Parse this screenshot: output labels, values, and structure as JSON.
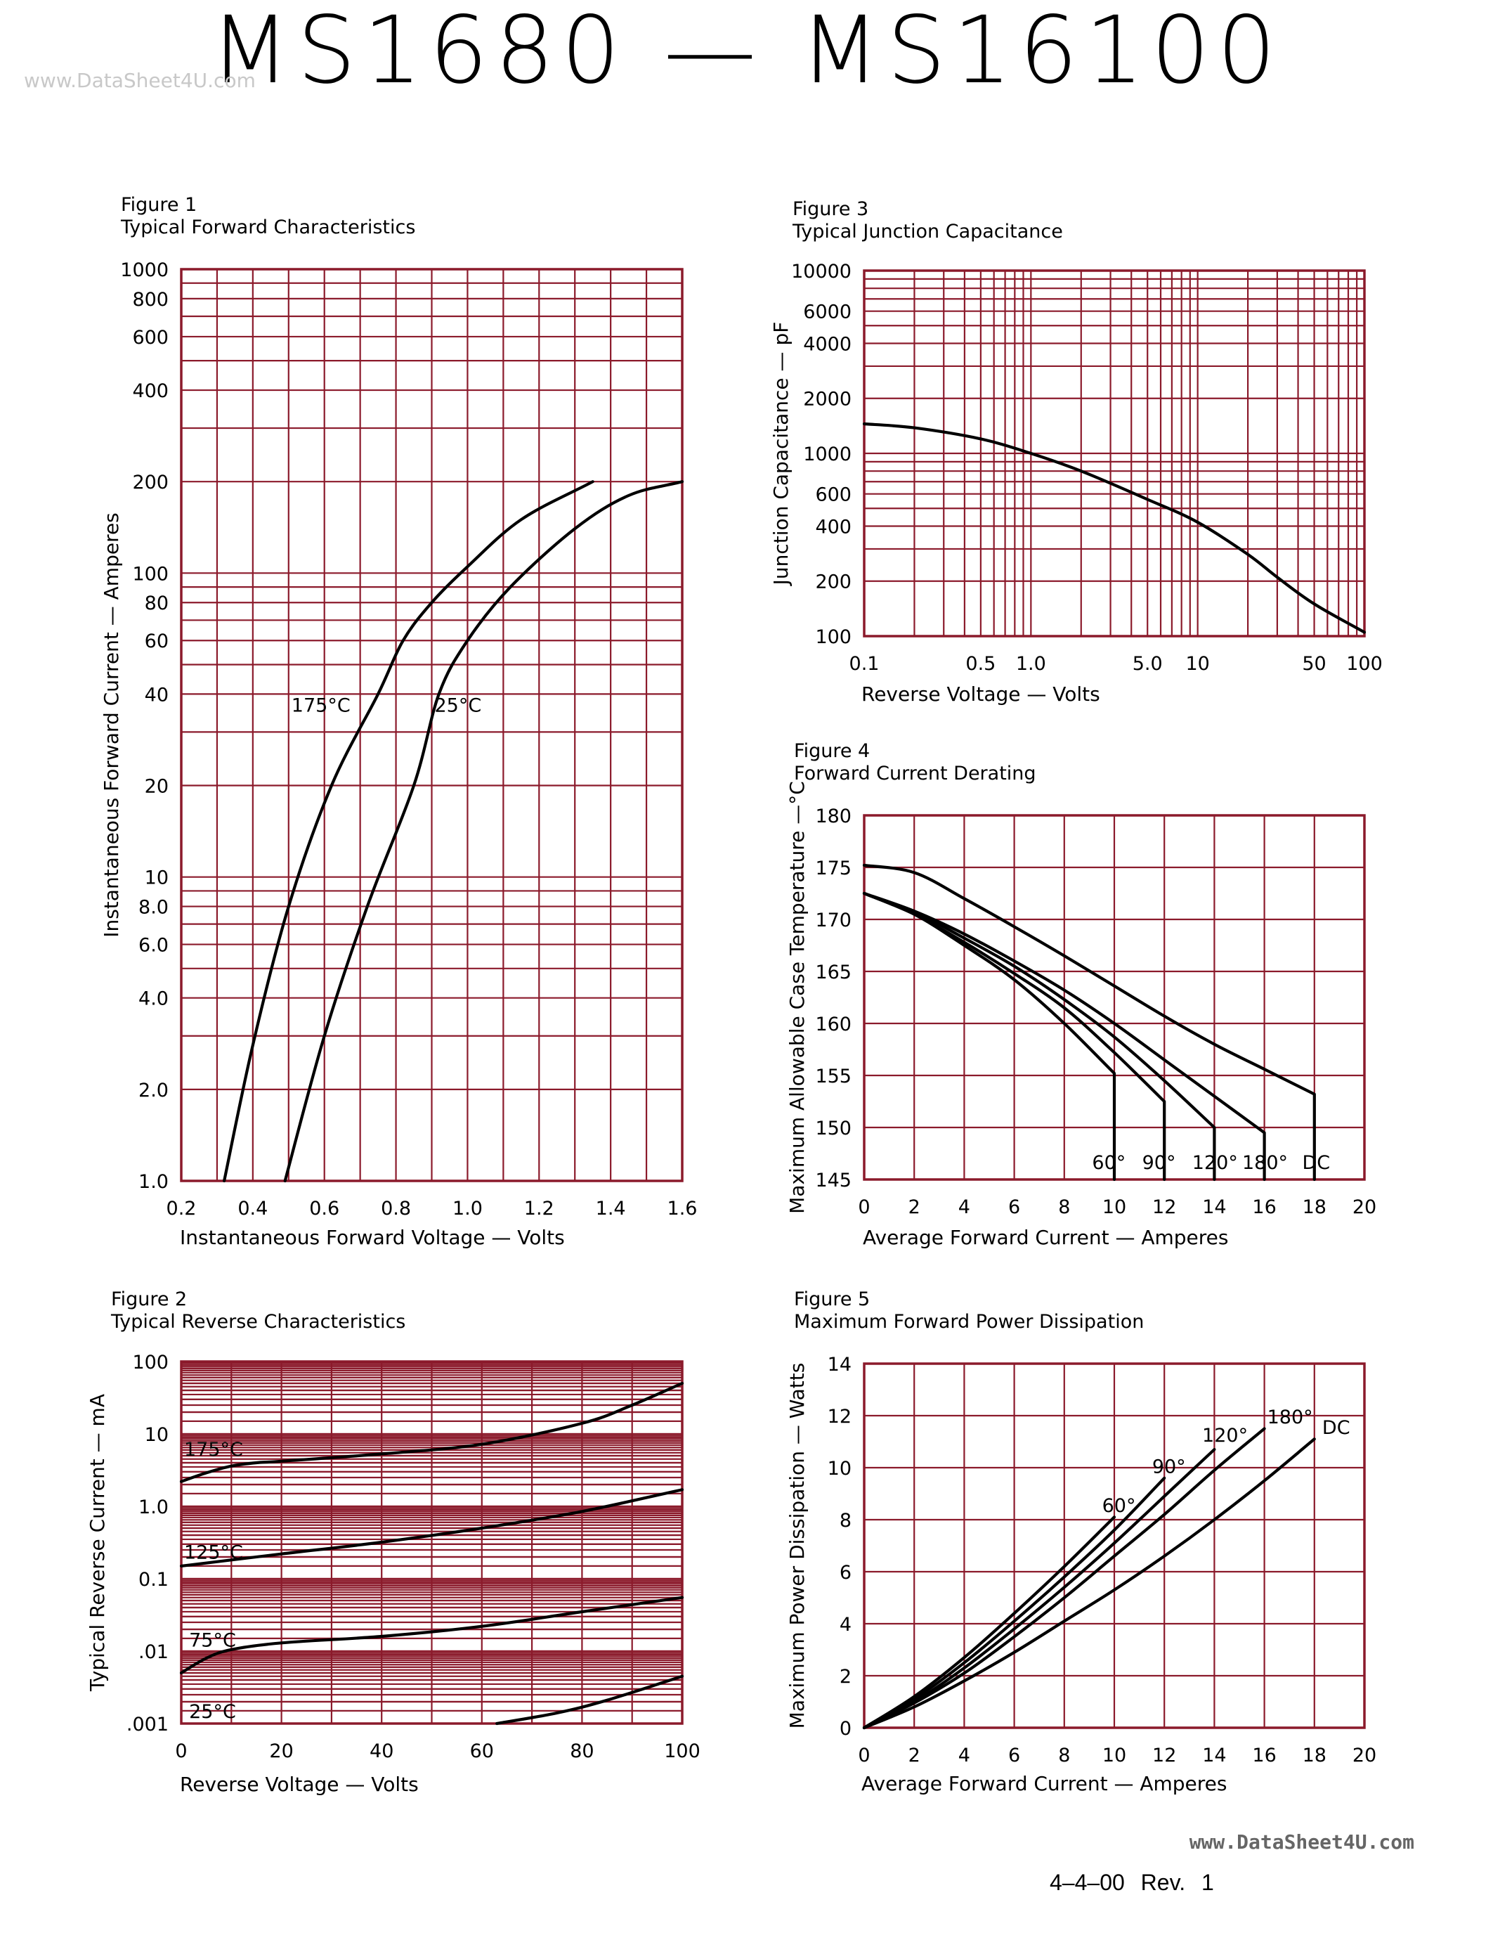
{
  "page": {
    "title": "MS1680  —  MS16100",
    "watermark_top": "www.DataSheet4U.com",
    "watermark_bottom": "www.DataSheet4U.com",
    "revision": "4–4–00   Rev. 1",
    "colors": {
      "grid": "#8b1a2b",
      "curve": "#000000",
      "text": "#000000"
    }
  },
  "chart_data": [
    {
      "id": "fig1",
      "type": "line",
      "figure_label": "Figure 1",
      "title": "Typical Forward Characteristics",
      "xlabel": "Instantaneous Forward Voltage — Volts",
      "ylabel": "Instantaneous Forward Current — Amperes",
      "xscale": "linear",
      "yscale": "log",
      "xlim": [
        0.2,
        1.6
      ],
      "ylim": [
        1,
        1000
      ],
      "x_ticks": [
        0.2,
        0.4,
        0.6,
        0.8,
        1.0,
        1.2,
        1.4,
        1.6
      ],
      "x_tick_labels": [
        "0.2",
        "0.4",
        "0.6",
        "0.8",
        "1.0",
        "1.2",
        "1.4",
        "1.6"
      ],
      "y_ticks": [
        1,
        2,
        4,
        6,
        8,
        10,
        20,
        40,
        60,
        80,
        100,
        200,
        400,
        600,
        800,
        1000
      ],
      "y_tick_labels": [
        "1.0",
        "2.0",
        "4.0",
        "6.0",
        "8.0",
        "10",
        "20",
        "40",
        "60",
        "80",
        "100",
        "200",
        "400",
        "600",
        "800",
        "1000"
      ],
      "series": [
        {
          "name": "175°C",
          "x": [
            0.32,
            0.4,
            0.5,
            0.62,
            0.75,
            0.82,
            0.9,
            1.0,
            1.15,
            1.35
          ],
          "y": [
            1,
            2.8,
            8,
            20,
            40,
            60,
            80,
            105,
            150,
            200
          ]
        },
        {
          "name": "25°C",
          "x": [
            0.49,
            0.6,
            0.72,
            0.85,
            0.92,
            1.0,
            1.12,
            1.3,
            1.45,
            1.6
          ],
          "y": [
            1,
            3,
            8,
            20,
            40,
            60,
            90,
            140,
            180,
            200
          ]
        }
      ],
      "annotations": [
        {
          "text": "175°C",
          "x": 0.5,
          "y": 35
        },
        {
          "text": "25°C",
          "x": 0.9,
          "y": 35
        }
      ]
    },
    {
      "id": "fig2",
      "type": "line",
      "figure_label": "Figure 2",
      "title": "Typical Reverse Characteristics",
      "xlabel": "Reverse Voltage — Volts",
      "ylabel": "Typical Reverse Current — mA",
      "xscale": "linear",
      "yscale": "log",
      "xlim": [
        0,
        100
      ],
      "ylim": [
        0.001,
        100
      ],
      "x_ticks": [
        0,
        20,
        40,
        60,
        80,
        100
      ],
      "x_tick_labels": [
        "0",
        "20",
        "40",
        "60",
        "80",
        "100"
      ],
      "y_ticks": [
        0.001,
        0.01,
        0.1,
        1,
        10,
        100
      ],
      "y_tick_labels": [
        ".001",
        ".01",
        "0.1",
        "1.0",
        "10",
        "100"
      ],
      "series": [
        {
          "name": "175°C",
          "x": [
            0,
            5,
            10,
            15,
            20,
            40,
            60,
            80,
            90,
            100
          ],
          "y": [
            2.2,
            2.9,
            3.6,
            4.0,
            4.2,
            5.3,
            7.2,
            14,
            25,
            50
          ]
        },
        {
          "name": "125°C",
          "x": [
            0,
            20,
            40,
            60,
            80,
            100
          ],
          "y": [
            0.15,
            0.22,
            0.32,
            0.5,
            0.85,
            1.7
          ]
        },
        {
          "name": "75°C",
          "x": [
            0,
            5,
            10,
            20,
            40,
            60,
            80,
            100
          ],
          "y": [
            0.005,
            0.008,
            0.0105,
            0.013,
            0.016,
            0.022,
            0.035,
            0.055
          ]
        },
        {
          "name": "25°C",
          "x": [
            63,
            75,
            85,
            100
          ],
          "y": [
            0.001,
            0.0014,
            0.0021,
            0.0045
          ]
        }
      ],
      "annotations": [
        {
          "text": "175°C",
          "x": 0,
          "y": 5.0
        },
        {
          "text": "125°C",
          "x": 0,
          "y": 0.19
        },
        {
          "text": "75°C",
          "x": 1,
          "y": 0.0115
        },
        {
          "text": "25°C",
          "x": 1,
          "y": 0.0012
        }
      ]
    },
    {
      "id": "fig3",
      "type": "line",
      "figure_label": "Figure 3",
      "title": "Typical Junction Capacitance",
      "xlabel": "Reverse Voltage — Volts",
      "ylabel": "Junction Capacitance — pF",
      "xscale": "log",
      "yscale": "log",
      "xlim": [
        0.1,
        100
      ],
      "ylim": [
        100,
        10000
      ],
      "x_ticks": [
        0.1,
        0.5,
        1,
        5,
        10,
        50,
        100
      ],
      "x_tick_labels": [
        "0.1",
        "0.5",
        "1.0",
        "5.0",
        "10",
        "50",
        "100"
      ],
      "y_ticks": [
        100,
        200,
        400,
        600,
        1000,
        2000,
        4000,
        6000,
        10000
      ],
      "y_tick_labels": [
        "100",
        "200",
        "400",
        "600",
        "1000",
        "2000",
        "4000",
        "6000",
        "10000"
      ],
      "series": [
        {
          "name": "capacitance",
          "x": [
            0.1,
            0.2,
            0.5,
            1.0,
            2.0,
            5.0,
            10,
            20,
            30,
            50,
            100
          ],
          "y": [
            1450,
            1380,
            1200,
            1000,
            800,
            560,
            420,
            280,
            210,
            150,
            105
          ]
        }
      ]
    },
    {
      "id": "fig4",
      "type": "line",
      "figure_label": "Figure 4",
      "title": "Forward Current Derating",
      "xlabel": "Average Forward Current — Amperes",
      "ylabel": "Maximum Allowable Case Temperature —°C",
      "xscale": "linear",
      "yscale": "linear",
      "xlim": [
        0,
        20
      ],
      "ylim": [
        145,
        180
      ],
      "x_ticks": [
        0,
        2,
        4,
        6,
        8,
        10,
        12,
        14,
        16,
        18,
        20
      ],
      "x_tick_labels": [
        "0",
        "2",
        "4",
        "6",
        "8",
        "10",
        "12",
        "14",
        "16",
        "18",
        "20"
      ],
      "y_ticks": [
        145,
        150,
        155,
        160,
        165,
        170,
        175,
        180
      ],
      "y_tick_labels": [
        "145",
        "150",
        "155",
        "160",
        "165",
        "170",
        "175",
        "180"
      ],
      "series": [
        {
          "name": "60°",
          "x": [
            0,
            2,
            4,
            6,
            8,
            10,
            10
          ],
          "y": [
            172.5,
            170.5,
            167.5,
            164.2,
            160,
            155.2,
            145
          ]
        },
        {
          "name": "90°",
          "x": [
            0,
            2,
            4,
            6,
            8,
            10,
            12,
            12
          ],
          "y": [
            172.5,
            170.5,
            167.8,
            164.8,
            161.5,
            157.2,
            152.5,
            145
          ]
        },
        {
          "name": "120°",
          "x": [
            0,
            2,
            4,
            6,
            8,
            10,
            12,
            14,
            14
          ],
          "y": [
            172.5,
            170.7,
            168.2,
            165.5,
            162.3,
            158.7,
            154.5,
            150,
            145
          ]
        },
        {
          "name": "180°",
          "x": [
            0,
            2,
            4,
            6,
            8,
            10,
            12,
            14,
            16,
            16
          ],
          "y": [
            172.5,
            170.8,
            168.6,
            166,
            163.2,
            160,
            156.5,
            153,
            149.5,
            145
          ]
        },
        {
          "name": "DC",
          "x": [
            0,
            2,
            4,
            6,
            8,
            10,
            12,
            14,
            16,
            18,
            18
          ],
          "y": [
            175.2,
            174.5,
            172,
            169.3,
            166.5,
            163.6,
            160.7,
            158,
            155.6,
            153.2,
            145
          ]
        }
      ],
      "annotations": [
        {
          "text": "60°",
          "x": 9.0,
          "y": 146
        },
        {
          "text": "90°",
          "x": 11.0,
          "y": 146
        },
        {
          "text": "120°",
          "x": 13.0,
          "y": 146
        },
        {
          "text": "180°",
          "x": 15.0,
          "y": 146
        },
        {
          "text": "DC",
          "x": 17.4,
          "y": 146
        }
      ]
    },
    {
      "id": "fig5",
      "type": "line",
      "figure_label": "Figure 5",
      "title": "Maximum Forward Power Dissipation",
      "xlabel": "Average Forward Current — Amperes",
      "ylabel": "Maximum Power Dissipation — Watts",
      "xscale": "linear",
      "yscale": "linear",
      "xlim": [
        0,
        20
      ],
      "ylim": [
        0,
        14
      ],
      "x_ticks": [
        0,
        2,
        4,
        6,
        8,
        10,
        12,
        14,
        16,
        18,
        20
      ],
      "x_tick_labels": [
        "0",
        "2",
        "4",
        "6",
        "8",
        "10",
        "12",
        "14",
        "16",
        "18",
        "20"
      ],
      "y_ticks": [
        0,
        2,
        4,
        6,
        8,
        10,
        12,
        14
      ],
      "y_tick_labels": [
        "0",
        "2",
        "4",
        "6",
        "8",
        "10",
        "12",
        "14"
      ],
      "series": [
        {
          "name": "60°",
          "x": [
            0,
            2,
            4,
            6,
            8,
            10
          ],
          "y": [
            0,
            1.2,
            2.7,
            4.4,
            6.2,
            8.1
          ]
        },
        {
          "name": "90°",
          "x": [
            0,
            2,
            4,
            6,
            8,
            10,
            12
          ],
          "y": [
            0,
            1.1,
            2.5,
            4.1,
            5.8,
            7.6,
            9.6
          ]
        },
        {
          "name": "120°",
          "x": [
            0,
            2,
            4,
            6,
            8,
            10,
            12,
            14
          ],
          "y": [
            0,
            1.0,
            2.3,
            3.8,
            5.4,
            7.1,
            8.9,
            10.7
          ]
        },
        {
          "name": "180°",
          "x": [
            0,
            2,
            4,
            6,
            8,
            10,
            12,
            14,
            16
          ],
          "y": [
            0,
            0.95,
            2.1,
            3.5,
            5.0,
            6.6,
            8.2,
            9.9,
            11.5
          ]
        },
        {
          "name": "DC",
          "x": [
            0,
            2,
            4,
            6,
            8,
            10,
            12,
            14,
            16,
            18
          ],
          "y": [
            0,
            0.8,
            1.8,
            2.9,
            4.1,
            5.3,
            6.6,
            8.0,
            9.5,
            11.1
          ]
        }
      ],
      "annotations": [
        {
          "text": "60°",
          "x": 9.4,
          "y": 8.3
        },
        {
          "text": "90°",
          "x": 11.4,
          "y": 9.8
        },
        {
          "text": "120°",
          "x": 13.4,
          "y": 11.0
        },
        {
          "text": "180°",
          "x": 16.0,
          "y": 11.7
        },
        {
          "text": "DC",
          "x": 18.2,
          "y": 11.3
        }
      ]
    }
  ]
}
